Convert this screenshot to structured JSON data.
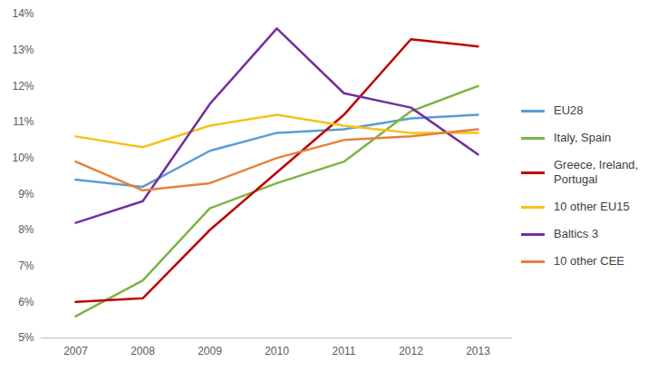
{
  "chart_data": {
    "type": "line",
    "categories": [
      "2007",
      "2008",
      "2009",
      "2010",
      "2011",
      "2012",
      "2013"
    ],
    "ylim": [
      5,
      14
    ],
    "yticks": [
      {
        "value": 5,
        "label": "5%"
      },
      {
        "value": 6,
        "label": "6%"
      },
      {
        "value": 7,
        "label": "7%"
      },
      {
        "value": 8,
        "label": "8%"
      },
      {
        "value": 9,
        "label": "9%"
      },
      {
        "value": 10,
        "label": "10%"
      },
      {
        "value": 11,
        "label": "11%"
      },
      {
        "value": 12,
        "label": "12%"
      },
      {
        "value": 13,
        "label": "13%"
      },
      {
        "value": 14,
        "label": "14%"
      }
    ],
    "grid": false,
    "legend": "right",
    "series": [
      {
        "name": "EU28",
        "color": "#5b9bd5",
        "values": [
          9.4,
          9.2,
          10.2,
          10.7,
          10.8,
          11.1,
          11.2
        ]
      },
      {
        "name": "Italy, Spain",
        "color": "#7cb342",
        "values": [
          5.6,
          6.6,
          8.6,
          9.3,
          9.9,
          11.3,
          12.0
        ]
      },
      {
        "name": "Greece, Ireland, Portugal",
        "color": "#c00000",
        "values": [
          6.0,
          6.1,
          8.0,
          9.6,
          11.2,
          13.3,
          13.1
        ]
      },
      {
        "name": "10 other EU15",
        "color": "#f5c21b",
        "values": [
          10.6,
          10.3,
          10.9,
          11.2,
          10.9,
          10.7,
          10.7
        ]
      },
      {
        "name": "Baltics 3",
        "color": "#7030a0",
        "values": [
          8.2,
          8.8,
          11.5,
          13.6,
          11.8,
          11.4,
          10.1
        ]
      },
      {
        "name": "10 other CEE",
        "color": "#e8803a",
        "values": [
          9.9,
          9.1,
          9.3,
          10.0,
          10.5,
          10.6,
          10.8
        ]
      }
    ]
  }
}
